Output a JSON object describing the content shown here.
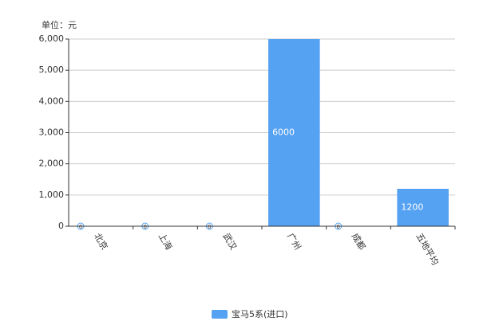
{
  "chart_data": {
    "type": "bar",
    "unit_label": "单位：元",
    "categories": [
      "北京",
      "上海",
      "武汉",
      "广州",
      "成都",
      "五地平均"
    ],
    "series": [
      {
        "name": "宝马5系(进口)",
        "color": "#55a1f2",
        "values": [
          0,
          0,
          0,
          6000,
          0,
          1200
        ]
      }
    ],
    "ylim": [
      0,
      6000
    ],
    "yticks": [
      0,
      {
        "value": 1000,
        "label": "1,000"
      },
      {
        "value": 2000,
        "label": "2,000"
      },
      {
        "value": 3000,
        "label": "3,000"
      },
      {
        "value": 4000,
        "label": "4,000"
      },
      {
        "value": 5000,
        "label": "5,000"
      },
      {
        "value": 6000,
        "label": "6,000"
      }
    ],
    "grid": true,
    "legend": "bottom"
  }
}
